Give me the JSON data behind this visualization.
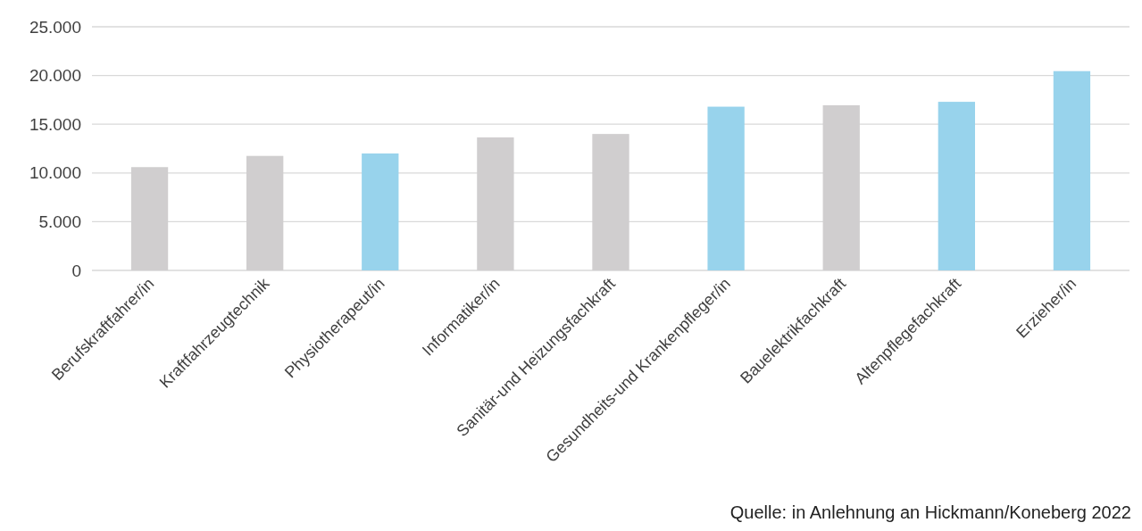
{
  "chart_data": {
    "type": "bar",
    "categories": [
      "Berufskraftfahrer/in",
      "Kraftfahrzeugtechnik",
      "Physiotherapeut/in",
      "Informatiker/in",
      "Sanitär-und Heizungsfachkraft",
      "Gesundheits-und Krankenpfleger/in",
      "Bauelektrikfachkraft",
      "Altenpflegefachkraft",
      "Erzieher/in"
    ],
    "values": [
      10600,
      11750,
      12000,
      13650,
      14000,
      16800,
      16950,
      17300,
      20450
    ],
    "colors": [
      "#d0cecf",
      "#d0cecf",
      "#98d3ec",
      "#d0cecf",
      "#d0cecf",
      "#98d3ec",
      "#d0cecf",
      "#98d3ec",
      "#98d3ec"
    ],
    "ylim": [
      0,
      25000
    ],
    "yticks": [
      {
        "value": 0,
        "label": "0"
      },
      {
        "value": 5000,
        "label": "5.000"
      },
      {
        "value": 10000,
        "label": "10.000"
      },
      {
        "value": 15000,
        "label": "15.000"
      },
      {
        "value": 20000,
        "label": "20.000"
      },
      {
        "value": 25000,
        "label": "25.000"
      }
    ],
    "grid": "y",
    "annotations": [
      "Quelle: in Anlehnung an Hickmann/Koneberg 2022"
    ]
  }
}
